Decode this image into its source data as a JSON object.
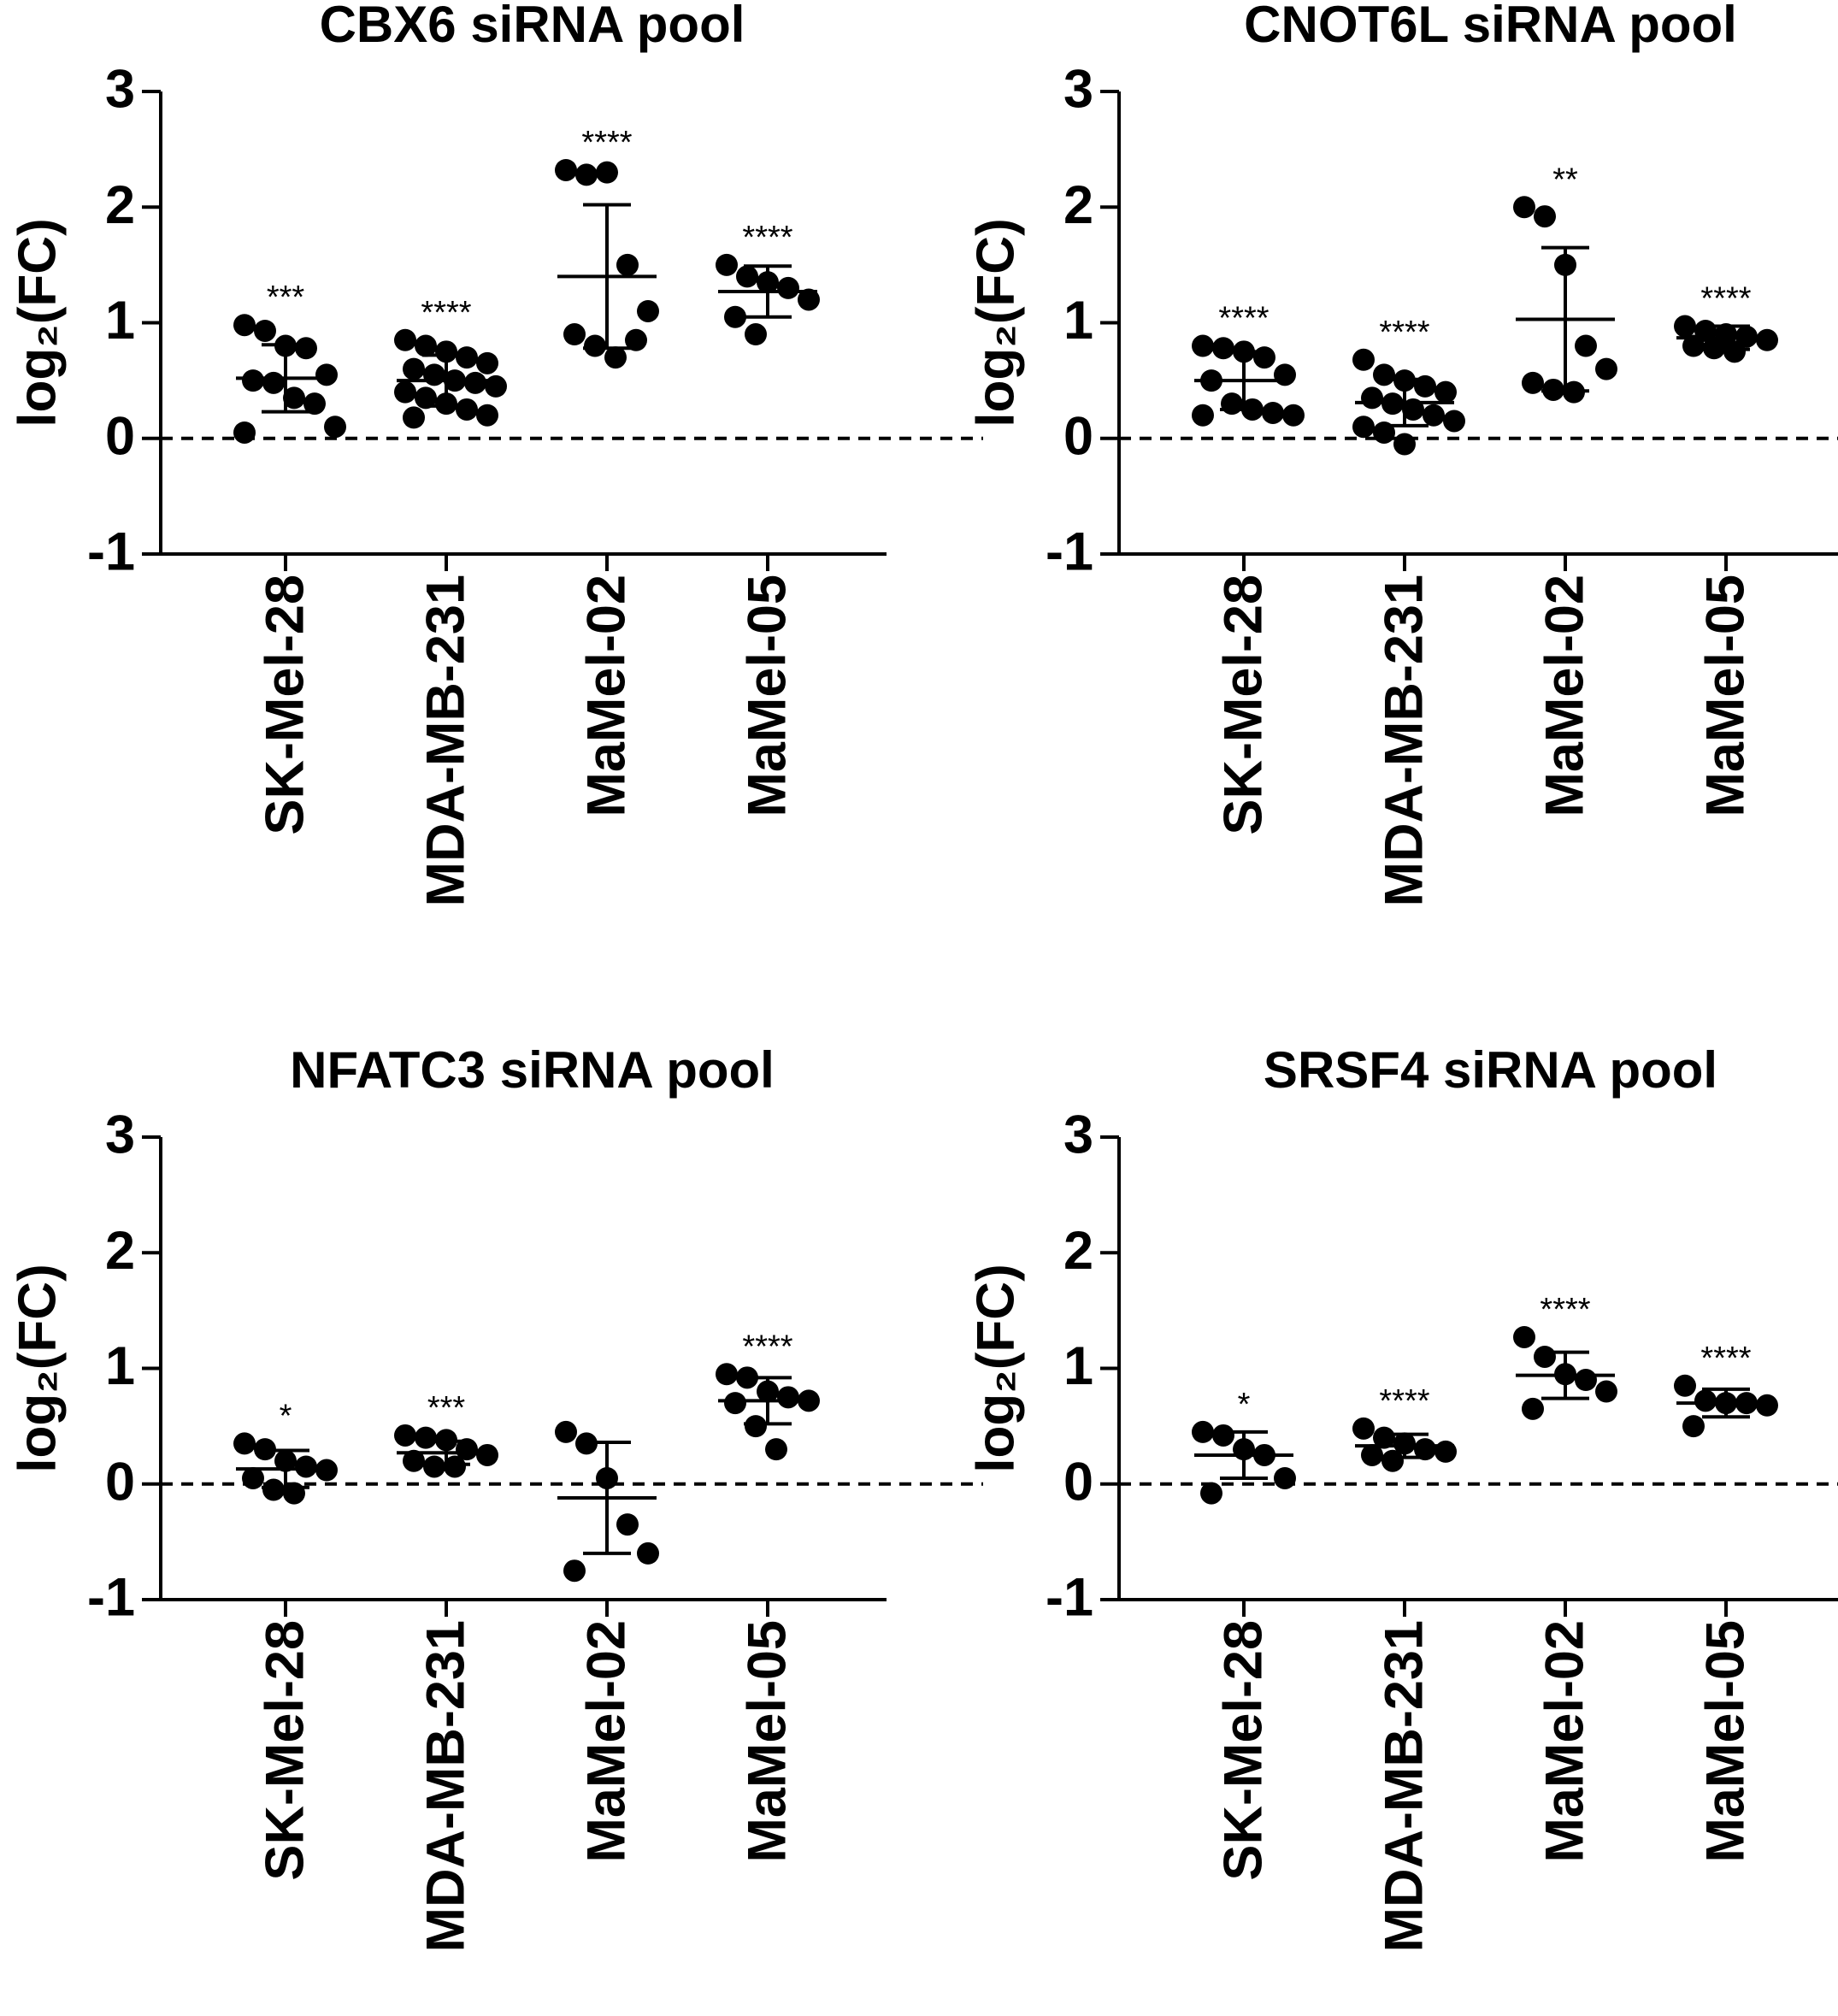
{
  "chart_data": [
    {
      "type": "dot",
      "title": "CBX6 siRNA pool",
      "ylabel": "log₂(FC)",
      "categories": [
        "SK-Mel-28",
        "MDA-MB-231",
        "MaMel-02",
        "MaMel-05"
      ],
      "points": [
        [
          0.98,
          0.93,
          0.8,
          0.78,
          0.55,
          0.5,
          0.48,
          0.35,
          0.3,
          0.1,
          0.05
        ],
        [
          0.85,
          0.8,
          0.75,
          0.7,
          0.65,
          0.6,
          0.55,
          0.5,
          0.48,
          0.45,
          0.4,
          0.35,
          0.3,
          0.25,
          0.2,
          0.18
        ],
        [
          2.32,
          2.28,
          2.3,
          1.5,
          1.1,
          0.9,
          0.8,
          0.7,
          0.85
        ],
        [
          1.5,
          1.4,
          1.35,
          1.3,
          1.2,
          1.05,
          0.9
        ]
      ],
      "means": [
        0.52,
        0.5,
        1.4,
        1.27
      ],
      "sd": [
        0.29,
        0.22,
        0.62,
        0.22
      ],
      "annotations": [
        "***",
        "****",
        "****",
        "****"
      ],
      "ylim": [
        -1,
        3
      ],
      "yticks": [
        -1,
        0,
        1,
        2,
        3
      ],
      "reference_line": 0,
      "color": "#000000"
    },
    {
      "type": "dot",
      "title": "CNOT6L siRNA pool",
      "ylabel": "log₂(FC)",
      "categories": [
        "SK-Mel-28",
        "MDA-MB-231",
        "MaMel-02",
        "MaMel-05"
      ],
      "points": [
        [
          0.8,
          0.78,
          0.75,
          0.7,
          0.55,
          0.5,
          0.3,
          0.25,
          0.22,
          0.2,
          0.2
        ],
        [
          0.68,
          0.55,
          0.5,
          0.45,
          0.4,
          0.35,
          0.3,
          0.25,
          0.2,
          0.15,
          0.1,
          0.05,
          -0.05
        ],
        [
          2.0,
          1.92,
          1.5,
          0.8,
          0.6,
          0.48,
          0.42,
          0.4
        ],
        [
          0.97,
          0.93,
          0.9,
          0.88,
          0.85,
          0.8,
          0.78,
          0.75
        ]
      ],
      "means": [
        0.5,
        0.31,
        1.03,
        0.87
      ],
      "sd": [
        0.25,
        0.2,
        0.62,
        0.1
      ],
      "annotations": [
        "****",
        "****",
        "**",
        "****"
      ],
      "ylim": [
        -1,
        3
      ],
      "yticks": [
        -1,
        0,
        1,
        2,
        3
      ],
      "reference_line": 0,
      "color": "#000000"
    },
    {
      "type": "dot",
      "title": "NFATC3 siRNA pool",
      "ylabel": "log₂(FC)",
      "categories": [
        "SK-Mel-28",
        "MDA-MB-231",
        "MaMel-02",
        "MaMel-05"
      ],
      "points": [
        [
          0.35,
          0.3,
          0.2,
          0.15,
          0.12,
          0.05,
          -0.05,
          -0.08
        ],
        [
          0.42,
          0.4,
          0.38,
          0.3,
          0.25,
          0.2,
          0.15,
          0.15
        ],
        [
          0.45,
          0.35,
          0.05,
          -0.35,
          -0.6,
          -0.75
        ],
        [
          0.95,
          0.92,
          0.8,
          0.75,
          0.72,
          0.7,
          0.5,
          0.3
        ]
      ],
      "means": [
        0.13,
        0.27,
        -0.12,
        0.72
      ],
      "sd": [
        0.16,
        0.1,
        0.48,
        0.2
      ],
      "annotations": [
        "*",
        "***",
        null,
        "****"
      ],
      "ylim": [
        -1,
        3
      ],
      "yticks": [
        -1,
        0,
        1,
        2,
        3
      ],
      "reference_line": 0,
      "color": "#000000"
    },
    {
      "type": "dot",
      "title": "SRSF4 siRNA pool",
      "ylabel": "log₂(FC)",
      "categories": [
        "SK-Mel-28",
        "MDA-MB-231",
        "MaMel-02",
        "MaMel-05"
      ],
      "points": [
        [
          0.45,
          0.42,
          0.3,
          0.25,
          0.05,
          -0.08
        ],
        [
          0.48,
          0.4,
          0.35,
          0.3,
          0.28,
          0.25,
          0.2
        ],
        [
          1.27,
          1.1,
          0.95,
          0.9,
          0.8,
          0.65
        ],
        [
          0.85,
          0.72,
          0.7,
          0.7,
          0.68,
          0.5
        ]
      ],
      "means": [
        0.25,
        0.33,
        0.94,
        0.7
      ],
      "sd": [
        0.2,
        0.1,
        0.2,
        0.12
      ],
      "annotations": [
        "*",
        "****",
        "****",
        "****"
      ],
      "ylim": [
        -1,
        3
      ],
      "yticks": [
        -1,
        0,
        1,
        2,
        3
      ],
      "reference_line": 0,
      "color": "#000000"
    }
  ]
}
